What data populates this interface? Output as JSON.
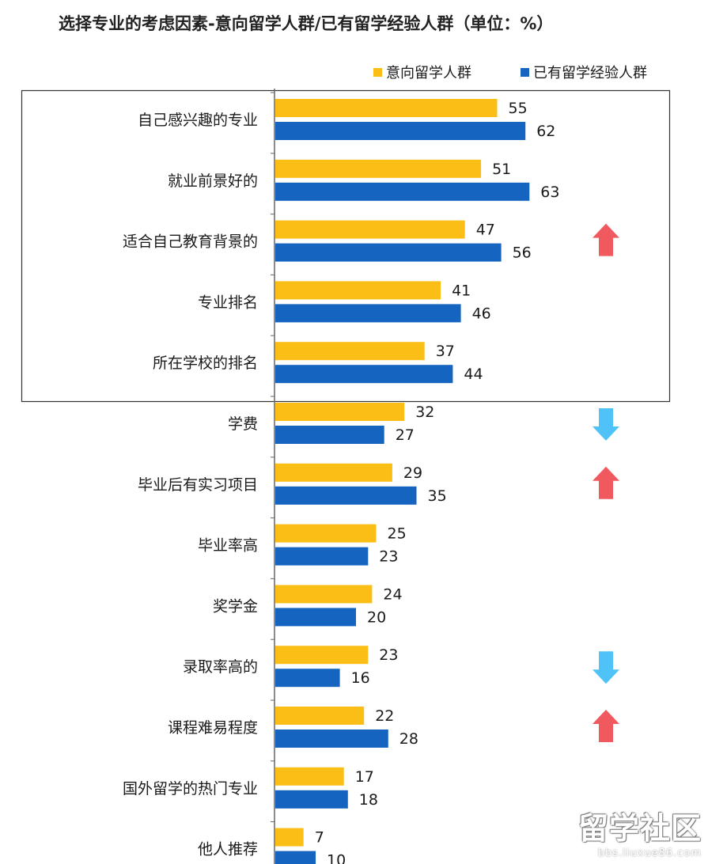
{
  "title": "选择专业的考虑因素-意向留学人群/已有留学经验人群（单位：%）",
  "colors": {
    "series1": "#FBBE16",
    "series2": "#1565C0",
    "arrow_up": "#F05A5F",
    "arrow_down": "#4FC3F7",
    "axis": "#666666",
    "box": "#333333"
  },
  "legend": [
    {
      "label": "意向留学人群",
      "color": "#FBBE16"
    },
    {
      "label": "已有留学经验人群",
      "color": "#1565C0"
    }
  ],
  "watermark": {
    "logo": "留学社区",
    "url": "bbs.liuxue86.com"
  },
  "chart_data": {
    "type": "bar",
    "orientation": "horizontal",
    "title": "选择专业的考虑因素-意向留学人群/已有留学经验人群（单位：%）",
    "categories": [
      "自己感兴趣的专业",
      "就业前景好的",
      "适合自己教育背景的",
      "专业排名",
      "所在学校的排名",
      "学费",
      "毕业后有实习项目",
      "毕业率高",
      "奖学金",
      "录取率高的",
      "课程难易程度",
      "国外留学的热门专业",
      "他人推荐"
    ],
    "series": [
      {
        "name": "意向留学人群",
        "color": "#FBBE16",
        "values": [
          55,
          51,
          47,
          41,
          37,
          32,
          29,
          25,
          24,
          23,
          22,
          17,
          7
        ]
      },
      {
        "name": "已有留学经验人群",
        "color": "#1565C0",
        "values": [
          62,
          63,
          56,
          46,
          44,
          27,
          35,
          23,
          20,
          16,
          28,
          18,
          10
        ]
      }
    ],
    "highlighted_categories": [
      "自己感兴趣的专业",
      "就业前景好的",
      "适合自己教育背景的",
      "专业排名",
      "所在学校的排名"
    ],
    "trend_arrows": [
      {
        "category": "适合自己教育背景的",
        "direction": "up"
      },
      {
        "category": "学费",
        "direction": "down"
      },
      {
        "category": "毕业后有实习项目",
        "direction": "up"
      },
      {
        "category": "录取率高的",
        "direction": "down"
      },
      {
        "category": "课程难易程度",
        "direction": "up"
      }
    ],
    "legend_position": "top-right",
    "grid": false,
    "data_labels": true
  }
}
